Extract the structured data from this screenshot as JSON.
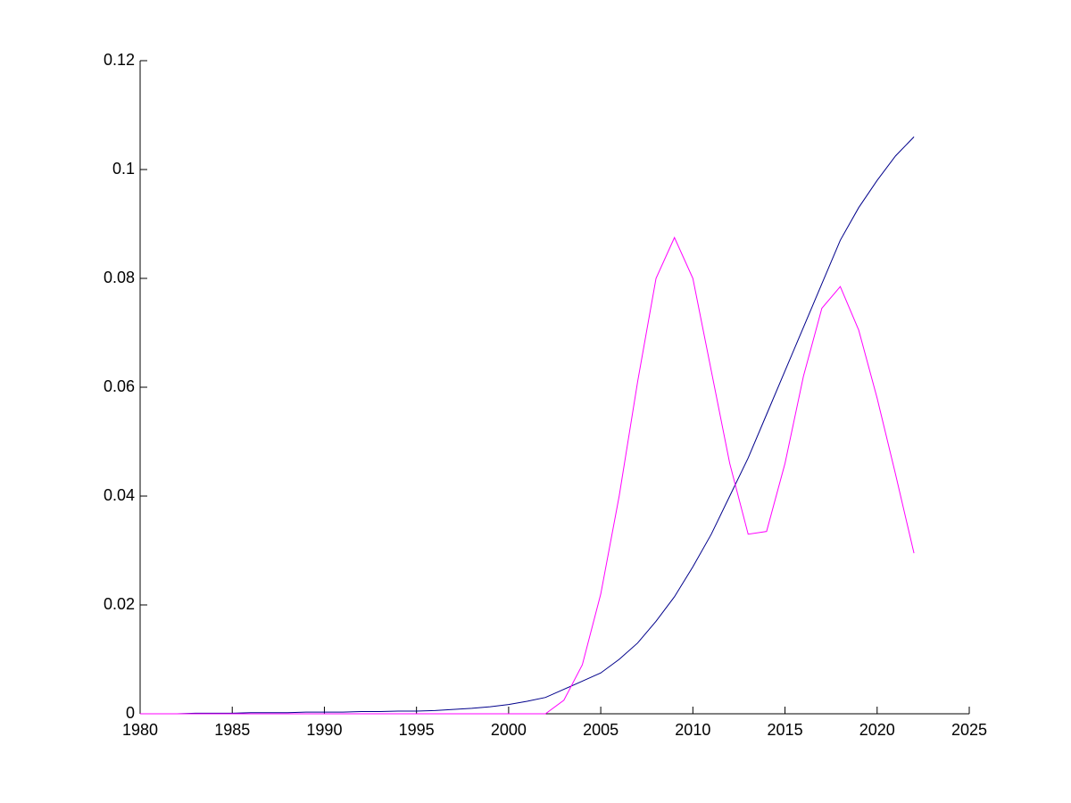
{
  "chart_data": {
    "type": "line",
    "x": [
      1980,
      1981,
      1982,
      1983,
      1984,
      1985,
      1986,
      1987,
      1988,
      1989,
      1990,
      1991,
      1992,
      1993,
      1994,
      1995,
      1996,
      1997,
      1998,
      1999,
      2000,
      2001,
      2002,
      2003,
      2004,
      2005,
      2006,
      2007,
      2008,
      2009,
      2010,
      2011,
      2012,
      2013,
      2014,
      2015,
      2016,
      2017,
      2018,
      2019,
      2020,
      2021,
      2022
    ],
    "series": [
      {
        "color": "#00008b",
        "values": [
          0,
          0,
          0,
          0.0001,
          0.0001,
          0.0001,
          0.0002,
          0.0002,
          0.0002,
          0.0003,
          0.0003,
          0.0003,
          0.0004,
          0.0004,
          0.0005,
          0.0005,
          0.0006,
          0.0008,
          0.001,
          0.0013,
          0.0017,
          0.0023,
          0.003,
          0.0045,
          0.006,
          0.0075,
          0.01,
          0.013,
          0.017,
          0.0215,
          0.027,
          0.033,
          0.04,
          0.047,
          0.055,
          0.063,
          0.071,
          0.079,
          0.087,
          0.093,
          0.098,
          0.1025,
          0.106
        ]
      },
      {
        "color": "#ff00ff",
        "values": [
          0,
          0,
          0,
          0,
          0,
          0,
          0,
          0,
          0,
          0,
          0,
          0,
          0,
          0,
          0,
          0,
          0,
          0,
          0,
          0,
          0,
          0,
          0,
          0.0025,
          0.009,
          0.022,
          0.04,
          0.061,
          0.08,
          0.0875,
          0.08,
          0.063,
          0.046,
          0.033,
          0.0335,
          0.046,
          0.062,
          0.0745,
          0.0785,
          0.0705,
          0.058,
          0.044,
          0.0295
        ]
      }
    ],
    "xlim": [
      1980,
      2025
    ],
    "xticks": [
      1980,
      1985,
      1990,
      1995,
      2000,
      2005,
      2010,
      2015,
      2020,
      2025
    ],
    "ylim": [
      0,
      0.12
    ],
    "yticks": [
      0,
      0.02,
      0.04,
      0.06,
      0.08,
      0.1,
      0.12
    ],
    "grid": false
  }
}
